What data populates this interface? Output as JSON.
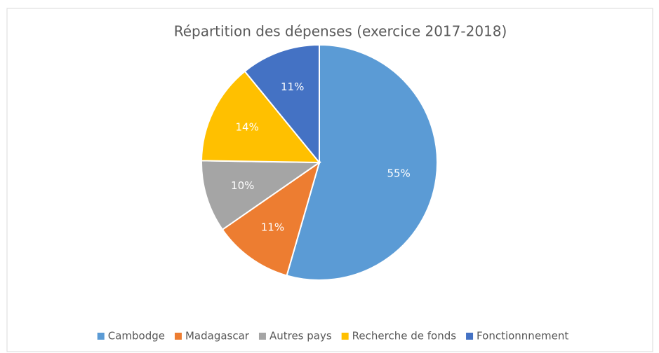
{
  "chart_data": {
    "type": "pie",
    "title": "Répartition des dépenses (exercice 2017-2018)",
    "categories": [
      "Cambodge",
      "Madagascar",
      "Autres pays",
      "Recherche de fonds",
      "Fonctionnnement"
    ],
    "values": [
      55,
      11,
      10,
      14,
      11
    ],
    "value_labels": [
      "55%",
      "11%",
      "10%",
      "14%",
      "11%"
    ],
    "colors": [
      "#5b9bd5",
      "#ed7d31",
      "#a5a5a5",
      "#ffc000",
      "#4472c4"
    ],
    "legend": "bottom"
  }
}
